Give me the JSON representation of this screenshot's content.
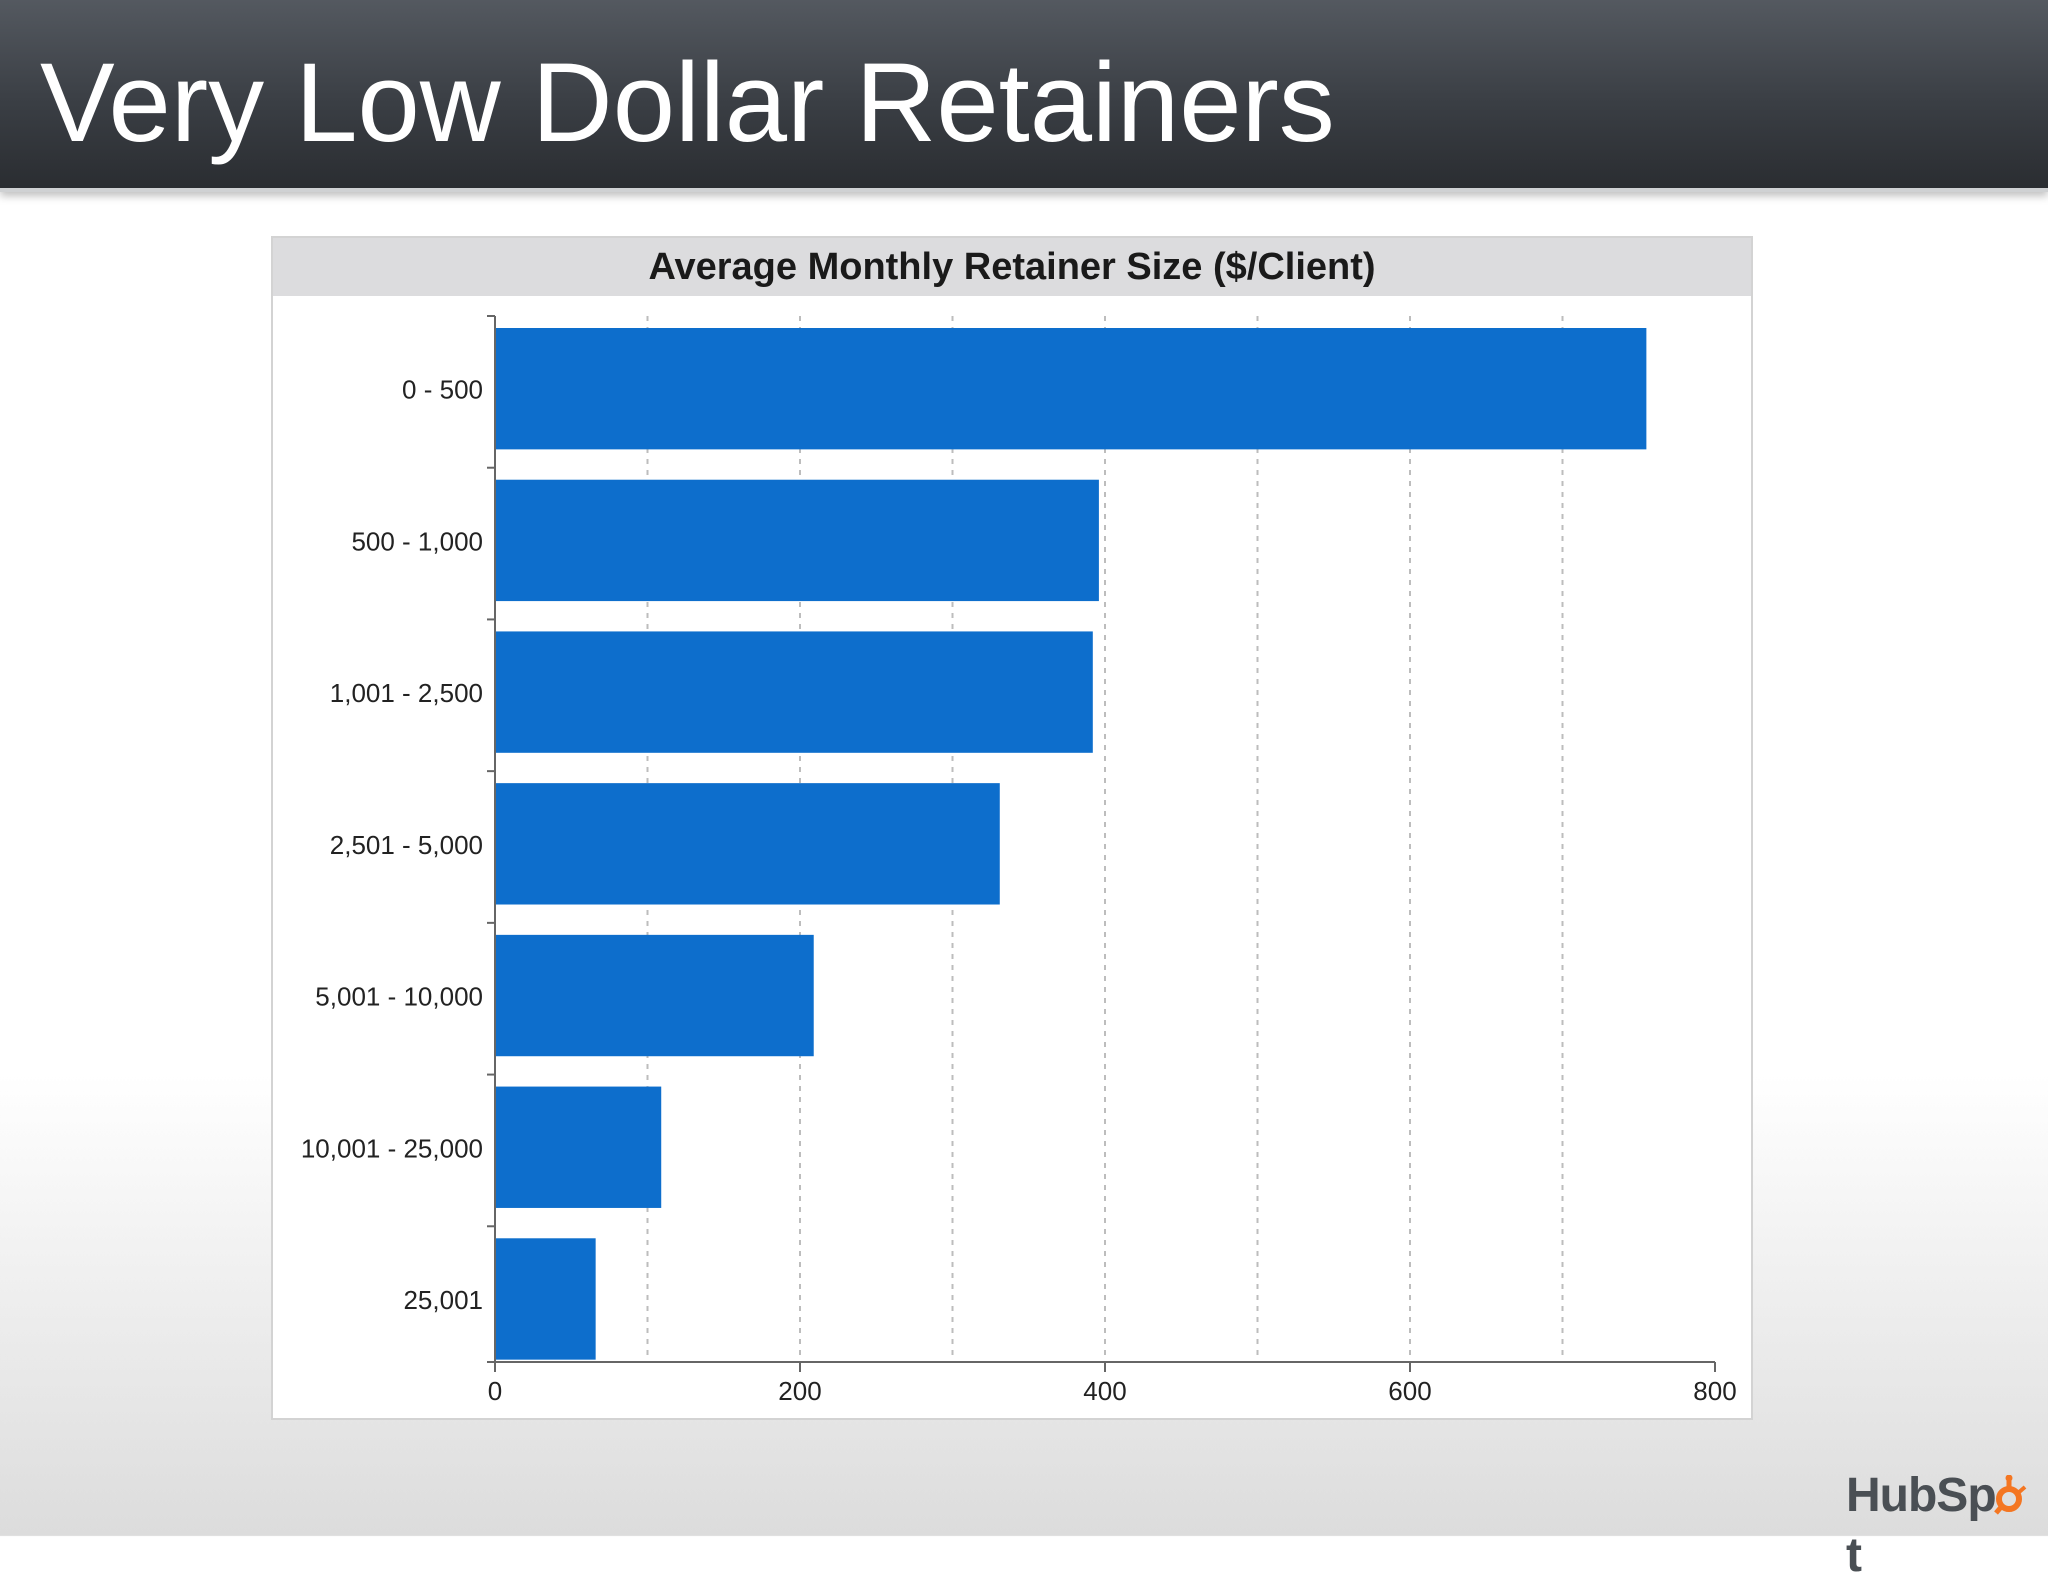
{
  "slide": {
    "title": "Very Low Dollar Retainers"
  },
  "logo": {
    "text": "HubSpot",
    "accent_color": "#f47622"
  },
  "chart_data": {
    "type": "bar",
    "orientation": "horizontal",
    "title": "Average Monthly Retainer Size ($/Client)",
    "xlabel": "",
    "ylabel": "",
    "categories": [
      "0 - 500",
      "500 - 1,000",
      "1,001 - 2,500",
      "2,501 - 5,000",
      "5,001 - 10,000",
      "10,001 - 25,000",
      "25,001"
    ],
    "values": [
      755,
      396,
      392,
      331,
      209,
      109,
      66
    ],
    "xlim": [
      0,
      800
    ],
    "xticks": [
      "0",
      "200",
      "400",
      "600",
      "800"
    ],
    "xtick_values": [
      0,
      200,
      400,
      600,
      800
    ],
    "grid": true,
    "grid_style": "dashed vertical every 100",
    "bar_color": "#0d6ecc"
  }
}
